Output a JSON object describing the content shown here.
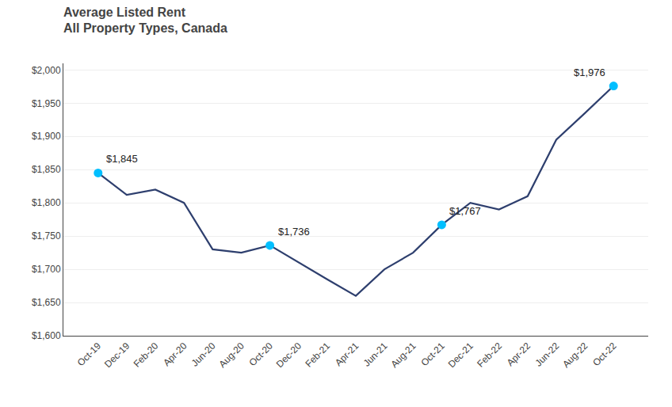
{
  "chart_data": {
    "type": "line",
    "title": "Average Listed Rent",
    "subtitle": "All Property Types, Canada",
    "categories": [
      "Oct-19",
      "Dec-19",
      "Feb-20",
      "Apr-20",
      "Jun-20",
      "Aug-20",
      "Oct-20",
      "Dec-20",
      "Feb-21",
      "Apr-21",
      "Jun-21",
      "Aug-21",
      "Oct-21",
      "Dec-21",
      "Feb-22",
      "Apr-22",
      "Jun-22",
      "Aug-22",
      "Oct-22"
    ],
    "values": [
      1845,
      1812,
      1820,
      1800,
      1730,
      1725,
      1736,
      1710,
      1685,
      1660,
      1700,
      1725,
      1767,
      1800,
      1790,
      1810,
      1895,
      1935,
      1976
    ],
    "color": "#2E3F6E",
    "annotations": [
      {
        "text": "$1,845",
        "x": "Oct-19",
        "y": 1845,
        "color": "#00BFFF",
        "marker": "circle"
      },
      {
        "text": "$1,736",
        "x": "Oct-20",
        "y": 1736,
        "color": "#00BFFF",
        "marker": "circle"
      },
      {
        "text": "$1,767",
        "x": "Oct-21",
        "y": 1767,
        "color": "#00BFFF",
        "marker": "circle"
      },
      {
        "text": "$1,976",
        "x": "Oct-22",
        "y": 1976,
        "color": "#00BFFF",
        "marker": "circle"
      }
    ],
    "ylim": [
      1600,
      2010
    ],
    "yticks": [
      {
        "value": 1600,
        "label": "$1,600"
      },
      {
        "value": 1650,
        "label": "$1,650"
      },
      {
        "value": 1700,
        "label": "$1,700"
      },
      {
        "value": 1750,
        "label": "$1,750"
      },
      {
        "value": 1800,
        "label": "$1,800"
      },
      {
        "value": 1850,
        "label": "$1,850"
      },
      {
        "value": 1900,
        "label": "$1,900"
      },
      {
        "value": 1950,
        "label": "$1,950"
      },
      {
        "value": 2000,
        "label": "$2,000"
      }
    ],
    "grid": true
  }
}
